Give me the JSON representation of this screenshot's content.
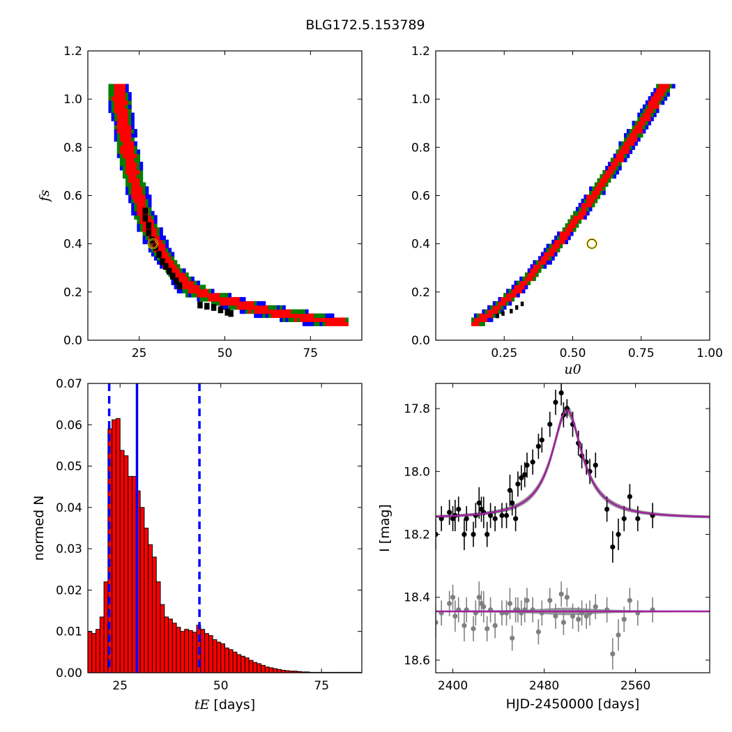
{
  "title": "BLG172.5.153789",
  "chart_data": [
    {
      "type": "heatmap",
      "panel": "top-left",
      "xlabel": "",
      "ylabel": "f_s",
      "ylabel_display": "fs",
      "xlim": [
        10,
        90
      ],
      "ylim": [
        0.0,
        1.2
      ],
      "xticks": [
        25,
        50,
        75
      ],
      "yticks": [
        0.0,
        0.2,
        0.4,
        0.6,
        0.8,
        1.0,
        1.2
      ],
      "xtick_labels": [
        "25",
        "50",
        "75"
      ],
      "ytick_labels": [
        "0.0",
        "0.2",
        "0.4",
        "0.6",
        "0.8",
        "1.0",
        "1.2"
      ],
      "confidence_colors": {
        "outer": "#0000ff",
        "middle": "#008000",
        "inner": "#ff0000",
        "core": "#000000"
      },
      "best_fit": {
        "x": 29,
        "y": 0.4
      },
      "marker_color": "#ffd700"
    },
    {
      "type": "heatmap",
      "panel": "top-right",
      "xlabel": "u_0",
      "xlabel_display": "u0",
      "ylabel": "",
      "xlim": [
        0.0,
        1.0
      ],
      "ylim": [
        0.0,
        1.2
      ],
      "xticks": [
        0.25,
        0.5,
        0.75,
        1.0
      ],
      "yticks": [
        0.0,
        0.2,
        0.4,
        0.6,
        0.8,
        1.0,
        1.2
      ],
      "xtick_labels": [
        "0.25",
        "0.50",
        "0.75",
        "1.00"
      ],
      "ytick_labels": [
        "0.0",
        "0.2",
        "0.4",
        "0.6",
        "0.8",
        "1.0",
        "1.2"
      ],
      "confidence_colors": {
        "outer": "#0000ff",
        "middle": "#008000",
        "inner": "#ff0000",
        "core": "#000000"
      },
      "best_fit": {
        "x": 0.57,
        "y": 0.4
      },
      "marker_color": "#ffd700"
    },
    {
      "type": "bar",
      "panel": "bottom-left",
      "xlabel_math": "t_E",
      "xlabel_math_display": "tE",
      "xlabel_suffix": " [days]",
      "ylabel": "normed N",
      "xlim": [
        17,
        85
      ],
      "ylim": [
        0.0,
        0.07
      ],
      "xticks": [
        25,
        50,
        75
      ],
      "yticks": [
        0.0,
        0.01,
        0.02,
        0.03,
        0.04,
        0.05,
        0.06,
        0.07
      ],
      "xtick_labels": [
        "25",
        "50",
        "75"
      ],
      "ytick_labels": [
        "0.00",
        "0.01",
        "0.02",
        "0.03",
        "0.04",
        "0.05",
        "0.06",
        "0.07"
      ],
      "bin_start": 17,
      "bin_width": 1,
      "values": [
        0.01,
        0.0095,
        0.0105,
        0.0135,
        0.022,
        0.059,
        0.0612,
        0.0615,
        0.0538,
        0.0525,
        0.0475,
        0.0475,
        0.044,
        0.04,
        0.035,
        0.031,
        0.028,
        0.022,
        0.0165,
        0.0135,
        0.013,
        0.012,
        0.011,
        0.01,
        0.0105,
        0.0102,
        0.0098,
        0.0115,
        0.0105,
        0.0095,
        0.009,
        0.008,
        0.0074,
        0.007,
        0.006,
        0.0056,
        0.005,
        0.0044,
        0.004,
        0.0036,
        0.003,
        0.0025,
        0.0022,
        0.0018,
        0.0014,
        0.0012,
        0.001,
        0.0008,
        0.0006,
        0.0005,
        0.0004,
        0.0004,
        0.0003,
        0.0002,
        0.0002,
        0.0001,
        0.0001,
        0.0001,
        0.0001,
        0.0001,
        0.0001,
        0.0001,
        0.0001,
        0.0001,
        0.0001,
        0.0001,
        0.0001,
        0.0001
      ],
      "bar_color": "#ff0000",
      "median": 29.2,
      "lower": 22.3,
      "upper": 44.7,
      "line_color": "#0000ff"
    },
    {
      "type": "scatter",
      "panel": "bottom-right",
      "xlabel": "HJD-2450000 [days]",
      "ylabel": "I [mag]",
      "xlim": [
        2385,
        2625
      ],
      "ylim": [
        18.64,
        17.72
      ],
      "xticks": [
        2400,
        2480,
        2560
      ],
      "yticks": [
        17.8,
        18.0,
        18.2,
        18.4,
        18.6
      ],
      "xtick_labels": [
        "2400",
        "2480",
        "2560"
      ],
      "ytick_labels": [
        "17.8",
        "18.0",
        "18.2",
        "18.4",
        "18.6"
      ],
      "model": {
        "t0": 2500,
        "baseline": 18.15,
        "peak": 17.805,
        "tE": 29
      },
      "residual_baseline": 18.445,
      "model_color": "#a020a0",
      "band_color": "#808080",
      "series": [
        {
          "name": "",
          "color": "#000000",
          "points": [
            [
              2385,
              18.2,
              0.05
            ],
            [
              2390,
              18.15,
              0.04
            ],
            [
              2397,
              18.13,
              0.04
            ],
            [
              2400,
              18.15,
              0.04
            ],
            [
              2402,
              18.14,
              0.05
            ],
            [
              2405,
              18.12,
              0.04
            ],
            [
              2410,
              18.2,
              0.05
            ],
            [
              2412,
              18.15,
              0.04
            ],
            [
              2418,
              18.2,
              0.04
            ],
            [
              2420,
              18.14,
              0.04
            ],
            [
              2423,
              18.1,
              0.05
            ],
            [
              2425,
              18.12,
              0.04
            ],
            [
              2427,
              18.13,
              0.05
            ],
            [
              2430,
              18.2,
              0.04
            ],
            [
              2433,
              18.14,
              0.04
            ],
            [
              2437,
              18.15,
              0.04
            ],
            [
              2443,
              18.14,
              0.04
            ],
            [
              2447,
              18.14,
              0.04
            ],
            [
              2450,
              18.06,
              0.05
            ],
            [
              2452,
              18.1,
              0.04
            ],
            [
              2455,
              18.15,
              0.04
            ],
            [
              2457,
              18.04,
              0.04
            ],
            [
              2460,
              18.02,
              0.04
            ],
            [
              2463,
              18.01,
              0.04
            ],
            [
              2465,
              17.98,
              0.04
            ],
            [
              2470,
              17.97,
              0.04
            ],
            [
              2475,
              17.92,
              0.04
            ],
            [
              2478,
              17.9,
              0.04
            ],
            [
              2485,
              17.85,
              0.04
            ],
            [
              2490,
              17.78,
              0.04
            ],
            [
              2495,
              17.75,
              0.04
            ],
            [
              2497,
              17.82,
              0.04
            ],
            [
              2500,
              17.8,
              0.03
            ],
            [
              2505,
              17.85,
              0.04
            ],
            [
              2510,
              17.91,
              0.04
            ],
            [
              2513,
              17.95,
              0.04
            ],
            [
              2517,
              17.97,
              0.04
            ],
            [
              2520,
              18.0,
              0.04
            ],
            [
              2525,
              17.98,
              0.04
            ],
            [
              2535,
              18.12,
              0.04
            ],
            [
              2540,
              18.24,
              0.05
            ],
            [
              2545,
              18.2,
              0.05
            ],
            [
              2550,
              18.15,
              0.04
            ],
            [
              2555,
              18.08,
              0.04
            ],
            [
              2562,
              18.15,
              0.04
            ],
            [
              2575,
              18.14,
              0.04
            ]
          ]
        },
        {
          "name": "",
          "color": "#808080",
          "points": [
            [
              2385,
              18.48,
              0.05
            ],
            [
              2390,
              18.45,
              0.04
            ],
            [
              2397,
              18.42,
              0.04
            ],
            [
              2400,
              18.4,
              0.04
            ],
            [
              2402,
              18.46,
              0.05
            ],
            [
              2405,
              18.44,
              0.04
            ],
            [
              2410,
              18.49,
              0.05
            ],
            [
              2412,
              18.44,
              0.04
            ],
            [
              2418,
              18.5,
              0.04
            ],
            [
              2420,
              18.45,
              0.04
            ],
            [
              2423,
              18.4,
              0.05
            ],
            [
              2425,
              18.42,
              0.04
            ],
            [
              2427,
              18.43,
              0.05
            ],
            [
              2430,
              18.5,
              0.04
            ],
            [
              2433,
              18.44,
              0.04
            ],
            [
              2437,
              18.49,
              0.04
            ],
            [
              2443,
              18.45,
              0.04
            ],
            [
              2447,
              18.45,
              0.04
            ],
            [
              2450,
              18.42,
              0.05
            ],
            [
              2452,
              18.53,
              0.04
            ],
            [
              2455,
              18.44,
              0.04
            ],
            [
              2457,
              18.44,
              0.04
            ],
            [
              2460,
              18.45,
              0.04
            ],
            [
              2463,
              18.44,
              0.04
            ],
            [
              2465,
              18.41,
              0.04
            ],
            [
              2470,
              18.44,
              0.04
            ],
            [
              2475,
              18.51,
              0.04
            ],
            [
              2478,
              18.45,
              0.04
            ],
            [
              2485,
              18.41,
              0.04
            ],
            [
              2490,
              18.46,
              0.04
            ],
            [
              2495,
              18.39,
              0.04
            ],
            [
              2497,
              18.48,
              0.04
            ],
            [
              2500,
              18.4,
              0.03
            ],
            [
              2505,
              18.46,
              0.04
            ],
            [
              2510,
              18.47,
              0.04
            ],
            [
              2513,
              18.45,
              0.04
            ],
            [
              2517,
              18.46,
              0.04
            ],
            [
              2520,
              18.45,
              0.04
            ],
            [
              2525,
              18.43,
              0.04
            ],
            [
              2535,
              18.44,
              0.04
            ],
            [
              2540,
              18.58,
              0.05
            ],
            [
              2545,
              18.52,
              0.05
            ],
            [
              2550,
              18.47,
              0.04
            ],
            [
              2555,
              18.41,
              0.04
            ],
            [
              2562,
              18.45,
              0.04
            ],
            [
              2575,
              18.44,
              0.04
            ]
          ]
        }
      ]
    }
  ]
}
